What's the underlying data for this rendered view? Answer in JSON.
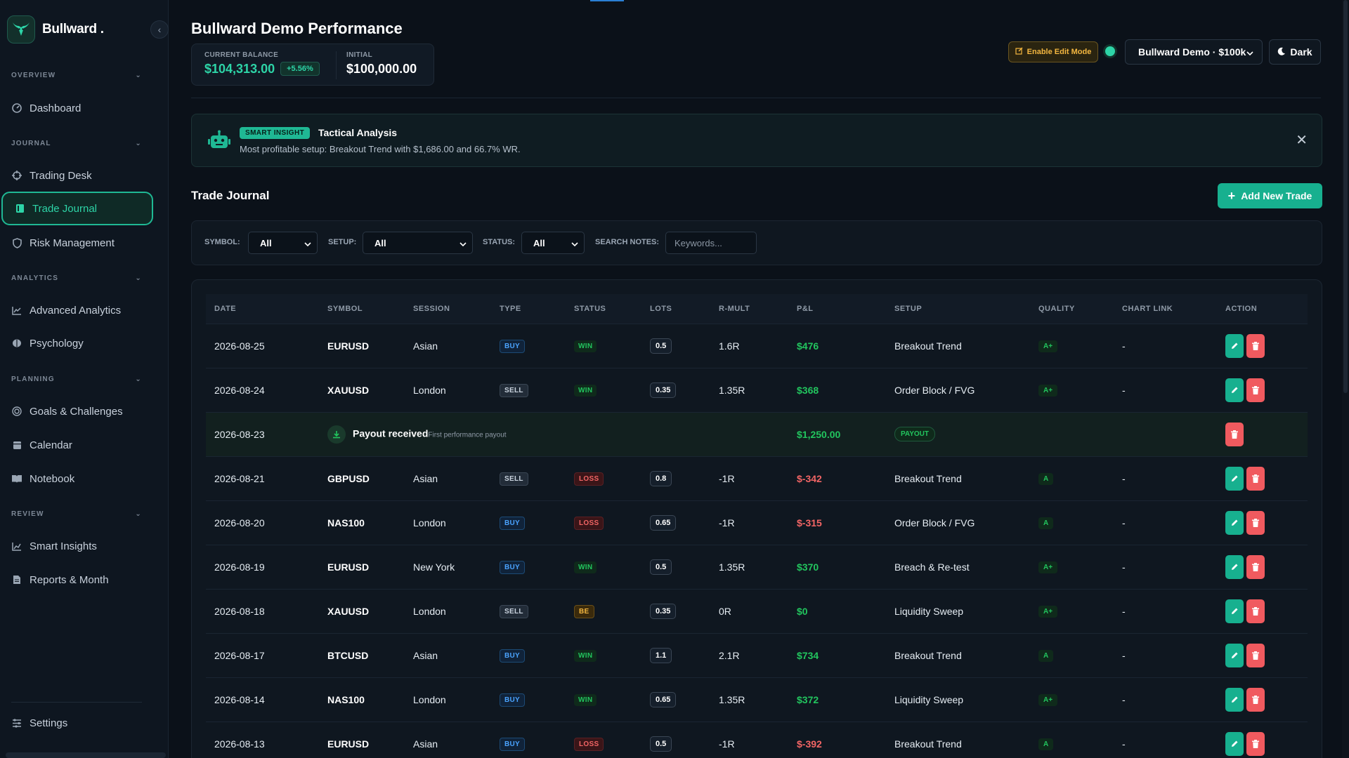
{
  "brand": {
    "name": "Bullward ."
  },
  "sidebar": {
    "sections": [
      {
        "label": "OVERVIEW",
        "items": [
          {
            "label": "Dashboard",
            "icon": "dashboard-icon"
          }
        ]
      },
      {
        "label": "JOURNAL",
        "items": [
          {
            "label": "Trading Desk",
            "icon": "crosshair-icon"
          },
          {
            "label": "Trade Journal",
            "icon": "journal-icon",
            "active": true
          },
          {
            "label": "Risk Management",
            "icon": "shield-icon"
          }
        ]
      },
      {
        "label": "ANALYTICS",
        "items": [
          {
            "label": "Advanced Analytics",
            "icon": "chart-line-icon"
          },
          {
            "label": "Psychology",
            "icon": "brain-icon"
          }
        ]
      },
      {
        "label": "PLANNING",
        "items": [
          {
            "label": "Goals & Challenges",
            "icon": "target-icon"
          },
          {
            "label": "Calendar",
            "icon": "calendar-icon"
          },
          {
            "label": "Notebook",
            "icon": "book-icon"
          }
        ]
      },
      {
        "label": "REVIEW",
        "items": [
          {
            "label": "Smart Insights",
            "icon": "insights-icon"
          },
          {
            "label": "Reports & Month",
            "icon": "report-icon"
          }
        ]
      }
    ],
    "settings_label": "Settings"
  },
  "header": {
    "title": "Bullward Demo Performance",
    "current_balance_label": "CURRENT BALANCE",
    "current_balance": "$104,313.00",
    "change_pct": "+5.56%",
    "initial_label": "INITIAL",
    "initial_balance": "$100,000.00",
    "edit_mode_label": "Enable Edit Mode",
    "account_selected": "Bullward Demo · $100k",
    "theme_label": "Dark"
  },
  "insight": {
    "tag": "SMART INSIGHT",
    "title": "Tactical Analysis",
    "text": "Most profitable setup: Breakout Trend with $1,686.00 and 66.7% WR."
  },
  "journal": {
    "title": "Trade Journal",
    "add_label": "Add New Trade"
  },
  "filters": {
    "symbol_label": "SYMBOL:",
    "symbol_value": "All",
    "setup_label": "SETUP:",
    "setup_value": "All",
    "status_label": "STATUS:",
    "status_value": "All",
    "search_label": "SEARCH NOTES:",
    "search_placeholder": "Keywords..."
  },
  "table": {
    "columns": [
      "DATE",
      "SYMBOL",
      "SESSION",
      "TYPE",
      "STATUS",
      "LOTS",
      "R-MULT",
      "P&L",
      "SETUP",
      "QUALITY",
      "CHART LINK",
      "ACTION"
    ],
    "rows": [
      {
        "date": "2026-08-25",
        "symbol": "EURUSD",
        "session": "Asian",
        "type": "BUY",
        "status": "WIN",
        "lots": "0.5",
        "rmult": "1.6R",
        "pnl": "$476",
        "setup": "Breakout Trend",
        "quality": "A+",
        "chart": "-"
      },
      {
        "date": "2026-08-24",
        "symbol": "XAUUSD",
        "session": "London",
        "type": "SELL",
        "status": "WIN",
        "lots": "0.35",
        "rmult": "1.35R",
        "pnl": "$368",
        "setup": "Order Block / FVG",
        "quality": "A+",
        "chart": "-"
      },
      {
        "date": "2026-08-23",
        "payout": true,
        "payout_title": "Payout received",
        "payout_sub": "First performance payout",
        "pnl": "$1,250.00",
        "tag": "PAYOUT"
      },
      {
        "date": "2026-08-21",
        "symbol": "GBPUSD",
        "session": "Asian",
        "type": "SELL",
        "status": "LOSS",
        "lots": "0.8",
        "rmult": "-1R",
        "pnl": "$-342",
        "setup": "Breakout Trend",
        "quality": "A",
        "chart": "-"
      },
      {
        "date": "2026-08-20",
        "symbol": "NAS100",
        "session": "London",
        "type": "BUY",
        "status": "LOSS",
        "lots": "0.65",
        "rmult": "-1R",
        "pnl": "$-315",
        "setup": "Order Block / FVG",
        "quality": "A",
        "chart": "-"
      },
      {
        "date": "2026-08-19",
        "symbol": "EURUSD",
        "session": "New York",
        "type": "BUY",
        "status": "WIN",
        "lots": "0.5",
        "rmult": "1.35R",
        "pnl": "$370",
        "setup": "Breach & Re-test",
        "quality": "A+",
        "chart": "-"
      },
      {
        "date": "2026-08-18",
        "symbol": "XAUUSD",
        "session": "London",
        "type": "SELL",
        "status": "BE",
        "lots": "0.35",
        "rmult": "0R",
        "pnl": "$0",
        "setup": "Liquidity Sweep",
        "quality": "A+",
        "chart": "-"
      },
      {
        "date": "2026-08-17",
        "symbol": "BTCUSD",
        "session": "Asian",
        "type": "BUY",
        "status": "WIN",
        "lots": "1.1",
        "rmult": "2.1R",
        "pnl": "$734",
        "setup": "Breakout Trend",
        "quality": "A",
        "chart": "-"
      },
      {
        "date": "2026-08-14",
        "symbol": "NAS100",
        "session": "London",
        "type": "BUY",
        "status": "WIN",
        "lots": "0.65",
        "rmult": "1.35R",
        "pnl": "$372",
        "setup": "Liquidity Sweep",
        "quality": "A+",
        "chart": "-"
      },
      {
        "date": "2026-08-13",
        "symbol": "EURUSD",
        "session": "Asian",
        "type": "BUY",
        "status": "LOSS",
        "lots": "0.5",
        "rmult": "-1R",
        "pnl": "$-392",
        "setup": "Breakout Trend",
        "quality": "A",
        "chart": "-"
      }
    ]
  },
  "colors": {
    "accent": "#17b08f",
    "win": "#22c55e",
    "loss": "#f26565",
    "warning": "#f4b740",
    "background": "#0b1119"
  }
}
